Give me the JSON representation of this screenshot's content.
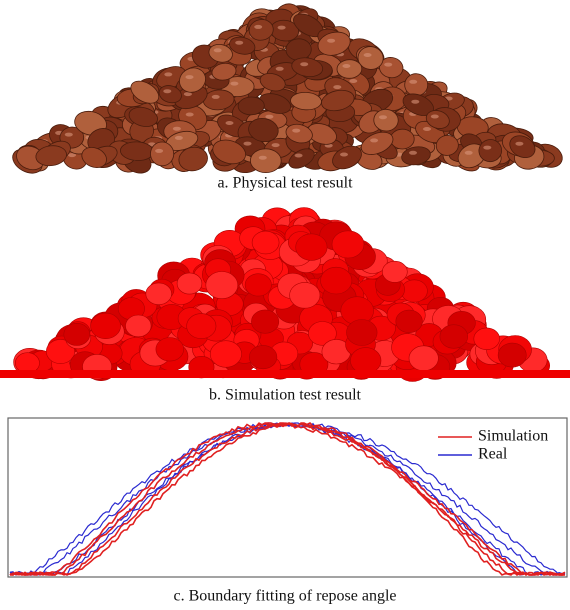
{
  "figure": {
    "panels": [
      {
        "caption": "a. Physical test result"
      },
      {
        "caption": "b. Simulation test result"
      },
      {
        "caption": "c. Boundary fitting of repose angle",
        "legend": [
          {
            "name": "Simulation",
            "color": "#e02020"
          },
          {
            "name": "Real",
            "color": "#2a2ad0"
          }
        ]
      }
    ]
  }
}
